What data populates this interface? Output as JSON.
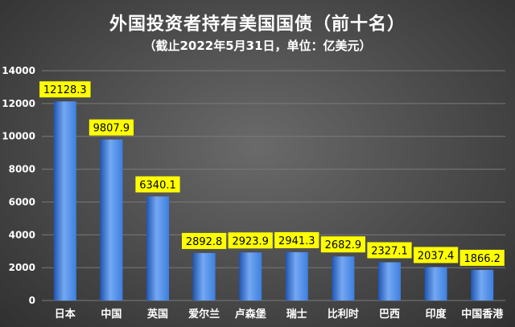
{
  "chart_data": {
    "type": "bar",
    "title": "外国投资者持有美国国债（前十名）",
    "subtitle": "（截止2022年5月31日，单位：亿美元）",
    "categories": [
      "日本",
      "中国",
      "英国",
      "爱尔兰",
      "卢森堡",
      "瑞士",
      "比利时",
      "巴西",
      "印度",
      "中国香港"
    ],
    "values": [
      12128.3,
      9807.9,
      6340.1,
      2892.8,
      2923.9,
      2941.3,
      2682.9,
      2327.1,
      2037.4,
      1866.2
    ],
    "data_labels": [
      "12128.3",
      "9807.9",
      "6340.1",
      "2892.8",
      "2923.9",
      "2941.3",
      "2682.9",
      "2327.1",
      "2037.4",
      "1866.2"
    ],
    "yticks": [
      "0",
      "2000",
      "4000",
      "6000",
      "8000",
      "10000",
      "12000",
      "14000"
    ],
    "ylim": [
      0,
      14000
    ],
    "xlabel": "",
    "ylabel": "",
    "grid": true,
    "colors": {
      "bar": "#3d7fe0",
      "bar_light": "#74a8f2",
      "bar_dark": "#1f55b0",
      "label_bg": "#ffff00",
      "grid": "#7a7a7a"
    }
  }
}
